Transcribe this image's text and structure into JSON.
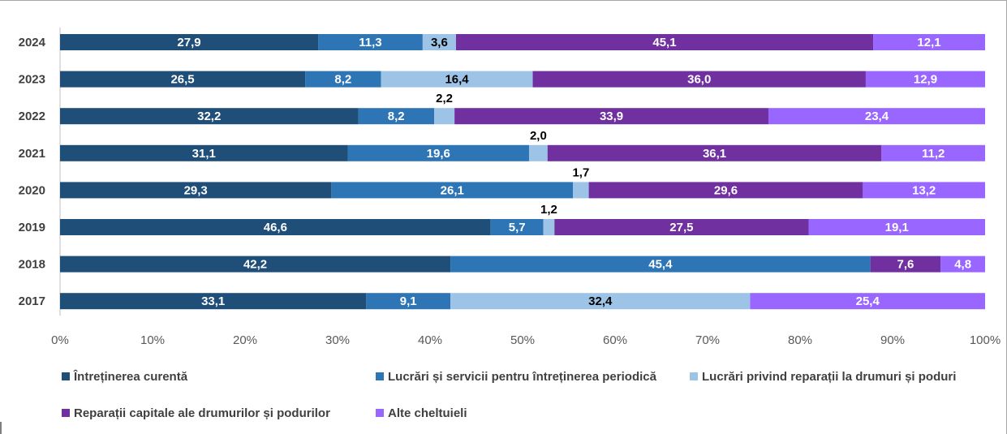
{
  "chart_data": {
    "type": "bar",
    "orientation": "horizontal",
    "stacked": "percent",
    "categories": [
      "2024",
      "2023",
      "2022",
      "2021",
      "2020",
      "2019",
      "2018",
      "2017"
    ],
    "series": [
      {
        "name": "Întreținerea curentă",
        "color": "#1f4e79",
        "values": [
          27.9,
          26.5,
          32.2,
          31.1,
          29.3,
          46.6,
          42.2,
          33.1
        ]
      },
      {
        "name": "Lucrări și servicii pentru întreținerea periodică",
        "color": "#2e75b6",
        "values": [
          11.3,
          8.2,
          8.2,
          19.6,
          26.1,
          5.7,
          45.4,
          9.1
        ]
      },
      {
        "name": "Lucrări privind reparații la drumuri și poduri",
        "color": "#9dc3e6",
        "values": [
          3.6,
          16.4,
          2.2,
          2.0,
          1.7,
          1.2,
          null,
          32.4
        ]
      },
      {
        "name": "Reparații capitale ale drumurilor și podurilor",
        "color": "#7030a0",
        "values": [
          45.1,
          36.0,
          33.9,
          36.1,
          29.6,
          27.5,
          7.6,
          null
        ]
      },
      {
        "name": "Alte cheltuieli",
        "color": "#9966ff",
        "values": [
          12.1,
          12.9,
          23.4,
          11.2,
          13.2,
          19.1,
          4.8,
          25.4
        ]
      }
    ],
    "data_labels": {
      "2024": [
        "27,9",
        "11,3",
        "3,6",
        "45,1",
        "12,1"
      ],
      "2023": [
        "26,5",
        "8,2",
        "16,4",
        "36,0",
        "12,9"
      ],
      "2022": [
        "32,2",
        "8,2",
        "2,2",
        "33,9",
        "23,4"
      ],
      "2021": [
        "31,1",
        "19,6",
        "2,0",
        "36,1",
        "11,2"
      ],
      "2020": [
        "29,3",
        "26,1",
        "1,7",
        "29,6",
        "13,2"
      ],
      "2019": [
        "46,6",
        "5,7",
        "1,2",
        "27,5",
        "19,1"
      ],
      "2018": [
        "42,2",
        "45,4",
        "",
        "7,6",
        "4,8"
      ],
      "2017": [
        "33,1",
        "9,1",
        "32,4",
        "",
        "25,4"
      ]
    },
    "x_ticks": [
      "0%",
      "10%",
      "20%",
      "30%",
      "40%",
      "50%",
      "60%",
      "70%",
      "80%",
      "90%",
      "100%"
    ],
    "xlim": [
      0,
      100
    ],
    "grid": false,
    "legend_position": "bottom",
    "title": "",
    "xlabel": "",
    "ylabel": ""
  }
}
